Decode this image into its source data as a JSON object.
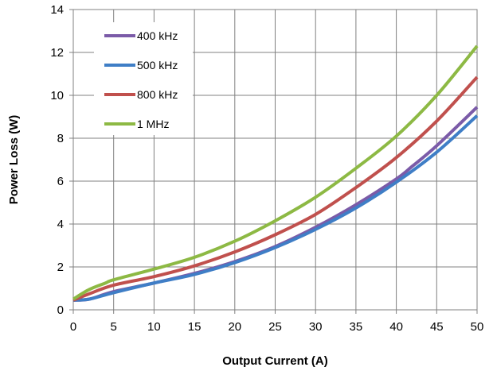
{
  "chart_data": {
    "type": "line",
    "title": "",
    "xlabel": "Output Current (A)",
    "ylabel": "Power Loss (W)",
    "xlim": [
      0,
      50
    ],
    "ylim": [
      0,
      14
    ],
    "x_ticks": [
      "0",
      "5",
      "10",
      "15",
      "20",
      "25",
      "30",
      "35",
      "40",
      "45",
      "50"
    ],
    "y_ticks": [
      "0",
      "2",
      "4",
      "6",
      "8",
      "10",
      "12",
      "14"
    ],
    "grid": true,
    "legend_position": "top-left",
    "series": [
      {
        "name": "400 kHz",
        "color": "#7B5BA8",
        "x": [
          0,
          2,
          5,
          10,
          15,
          20,
          25,
          30,
          35,
          40,
          42,
          45,
          50
        ],
        "y": [
          0.45,
          0.5,
          0.85,
          1.25,
          1.7,
          2.25,
          2.95,
          3.85,
          4.9,
          6.1,
          6.7,
          7.65,
          9.45
        ]
      },
      {
        "name": "500 kHz",
        "color": "#3F7EC6",
        "x": [
          0,
          2,
          5,
          10,
          15,
          20,
          25,
          30,
          35,
          40,
          45,
          50
        ],
        "y": [
          0.45,
          0.5,
          0.8,
          1.25,
          1.65,
          2.2,
          2.9,
          3.75,
          4.75,
          5.95,
          7.35,
          9.05
        ]
      },
      {
        "name": "800 kHz",
        "color": "#C0504D",
        "x": [
          0,
          2,
          5,
          10,
          15,
          20,
          25,
          30,
          35,
          40,
          45,
          50
        ],
        "y": [
          0.45,
          0.75,
          1.15,
          1.55,
          2.05,
          2.7,
          3.5,
          4.45,
          5.7,
          7.1,
          8.8,
          10.85
        ]
      },
      {
        "name": "1 MHz",
        "color": "#8DB944",
        "x": [
          0,
          2,
          4,
          5,
          10,
          15,
          20,
          25,
          30,
          35,
          40,
          45,
          50
        ],
        "y": [
          0.5,
          0.95,
          1.25,
          1.4,
          1.9,
          2.45,
          3.2,
          4.15,
          5.25,
          6.6,
          8.1,
          10.0,
          12.3
        ]
      }
    ]
  }
}
